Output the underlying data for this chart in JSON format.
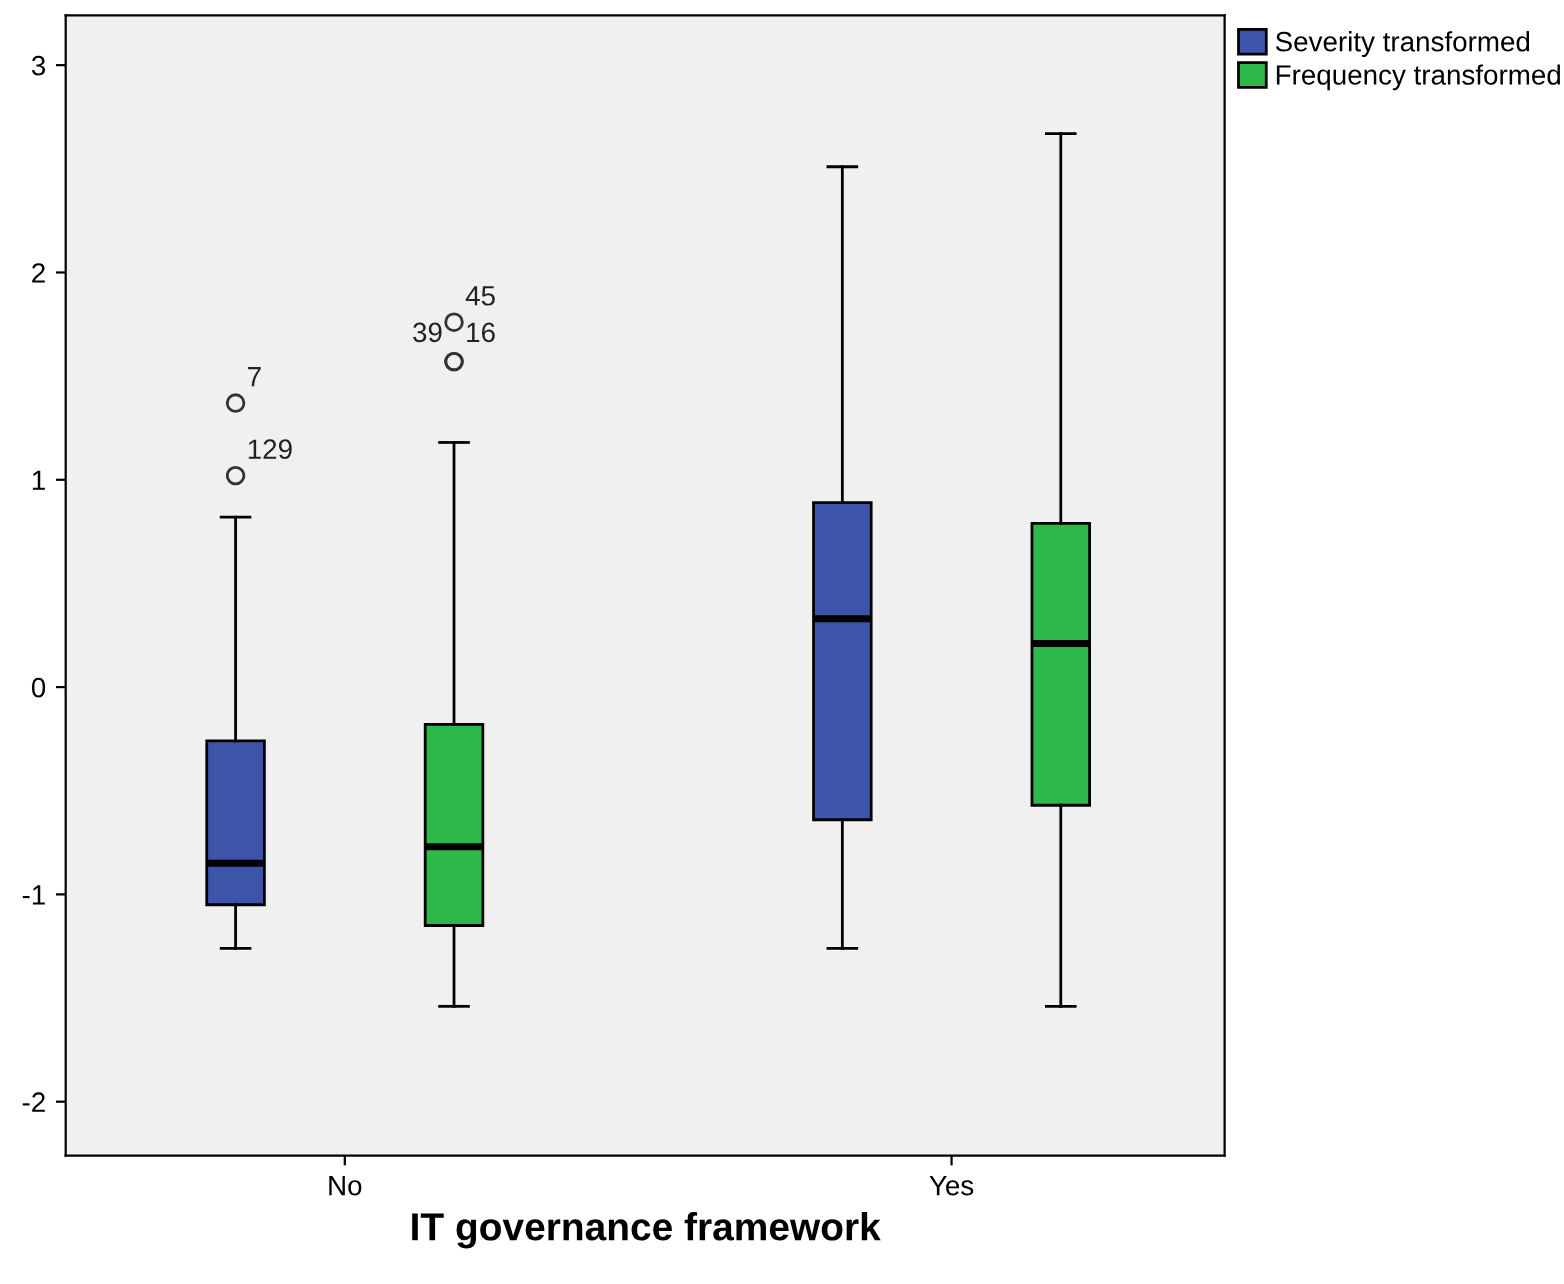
{
  "chart_data": {
    "type": "box",
    "xlabel": "IT governance framework",
    "categories": [
      "No",
      "Yes"
    ],
    "series": [
      {
        "name": "Severity transformed",
        "color": "#3d55a8",
        "boxes": [
          {
            "low": -1.26,
            "q1": -1.05,
            "median": -0.85,
            "q3": -0.26,
            "high": 0.82,
            "outliers": [
              1.37,
              1.02
            ]
          },
          {
            "low": -1.26,
            "q1": -0.64,
            "median": 0.33,
            "q3": 0.89,
            "high": 2.51
          }
        ]
      },
      {
        "name": "Frequency transformed",
        "color": "#2db84a",
        "boxes": [
          {
            "low": -1.54,
            "q1": -1.15,
            "median": -0.77,
            "q3": -0.18,
            "high": 1.18,
            "outliers": [
              1.76,
              1.57,
              1.57
            ]
          },
          {
            "low": -1.54,
            "q1": -0.57,
            "median": 0.21,
            "q3": 0.79,
            "high": 2.67
          }
        ]
      }
    ],
    "annotations": [
      "7",
      "129",
      "45",
      "39",
      "16"
    ],
    "ylim": [
      -2.26,
      3.24
    ],
    "yticks": [
      -2,
      -1,
      0,
      1,
      2,
      3
    ],
    "legend": "top right",
    "grid": false
  }
}
